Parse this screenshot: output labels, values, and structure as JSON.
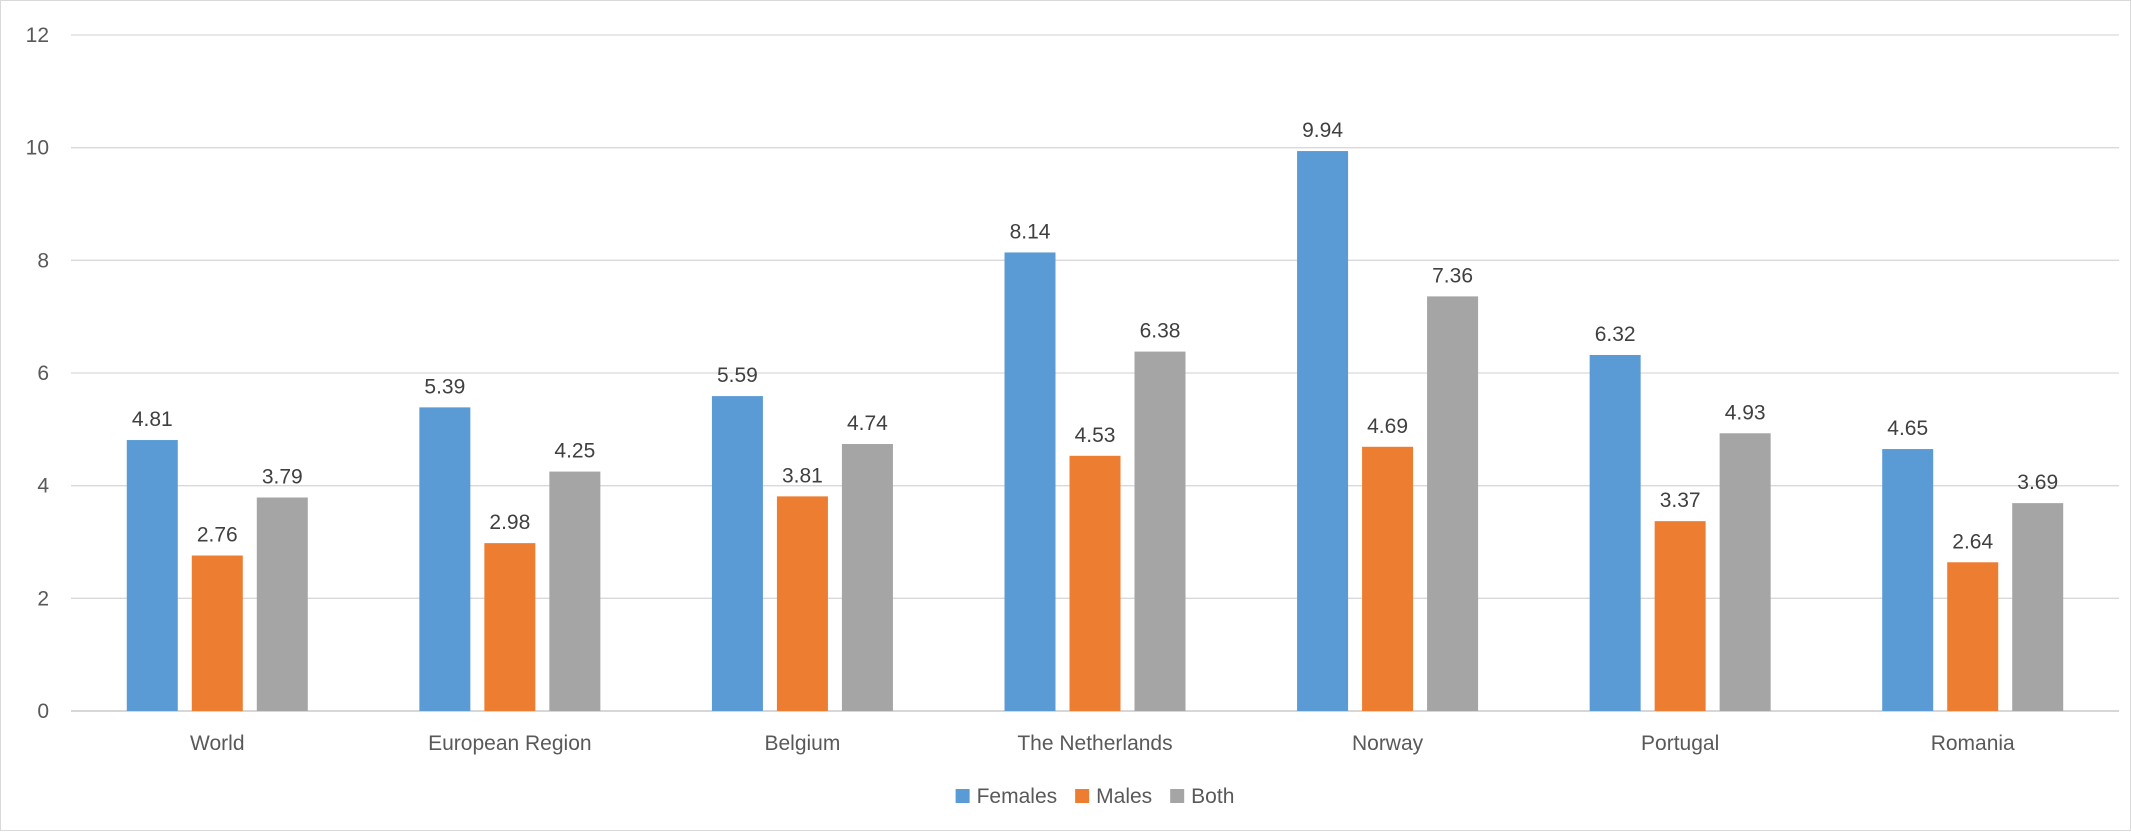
{
  "chart_data": {
    "type": "bar",
    "categories": [
      "World",
      "European Region",
      "Belgium",
      "The Netherlands",
      "Norway",
      "Portugal",
      "Romania"
    ],
    "series": [
      {
        "name": "Females",
        "color": "#5b9bd5",
        "values": [
          4.81,
          5.39,
          5.59,
          8.14,
          9.94,
          6.32,
          4.65
        ]
      },
      {
        "name": "Males",
        "color": "#ed7d31",
        "values": [
          2.76,
          2.98,
          3.81,
          4.53,
          4.69,
          3.37,
          2.64
        ]
      },
      {
        "name": "Both",
        "color": "#a5a5a5",
        "values": [
          3.79,
          4.25,
          4.74,
          6.38,
          7.36,
          4.93,
          3.69
        ]
      }
    ],
    "yticks": [
      0,
      2,
      4,
      6,
      8,
      10,
      12
    ],
    "ylim": [
      0,
      12
    ],
    "title": "",
    "xlabel": "",
    "ylabel": "",
    "grid": true,
    "legend_position": "bottom",
    "data_labels": true
  }
}
